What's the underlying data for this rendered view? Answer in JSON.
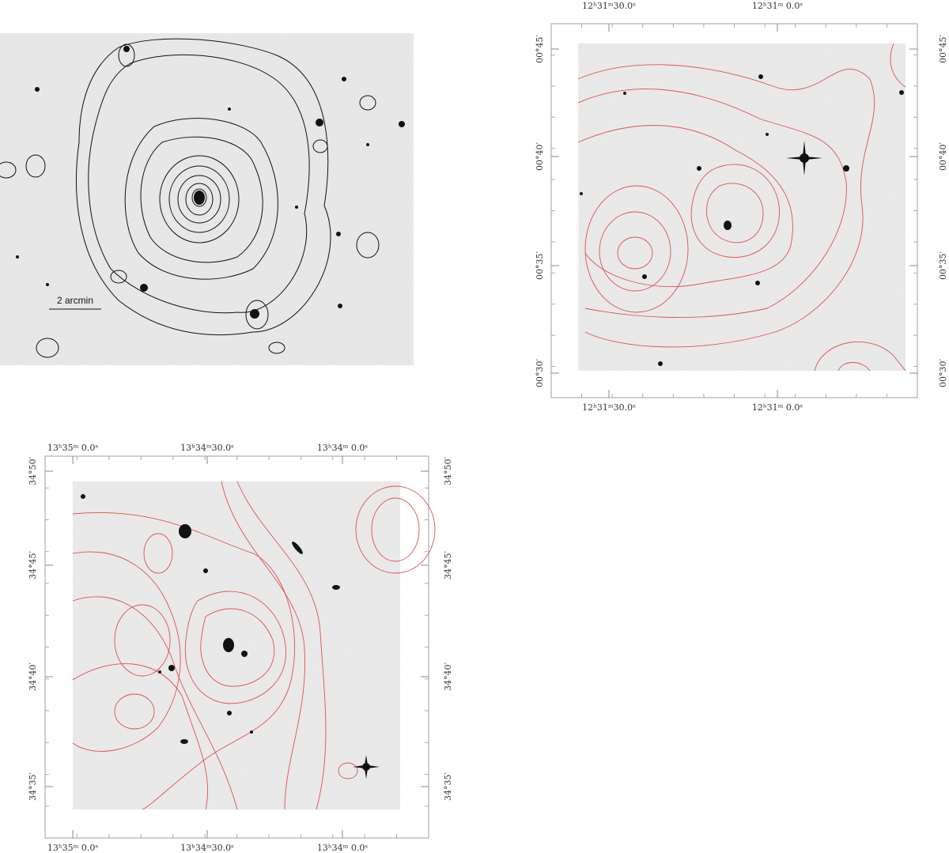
{
  "panels": [
    {
      "scale_bar": "2 arcmin"
    },
    {
      "top_labels": [
        "12ʰ31ᵐ30.0ˢ",
        "12ʰ31ᵐ 0.0ˢ"
      ],
      "bottom_labels": [
        "12ʰ31ᵐ30.0ˢ",
        "12ʰ31ᵐ 0.0ˢ"
      ],
      "left_labels": [
        "00°45′",
        "00°40′",
        "00°35′",
        "00°30′"
      ],
      "right_labels": [
        "00°45′",
        "00°40′",
        "00°35′",
        "00°30′"
      ]
    },
    {
      "top_labels": [
        "13ʰ35ᵐ 0.0ˢ",
        "13ʰ34ᵐ30.0ˢ",
        "13ʰ34ᵐ 0.0ˢ"
      ],
      "bottom_labels": [
        "13ʰ35ᵐ 0.0ˢ",
        "13ʰ34ᵐ30.0ˢ",
        "13ʰ34ᵐ 0.0ˢ"
      ],
      "left_labels": [
        "34°50′",
        "34°45′",
        "34°40′",
        "34°35′"
      ],
      "right_labels": [
        "34°50′",
        "34°45′",
        "34°40′",
        "34°35′"
      ]
    }
  ]
}
